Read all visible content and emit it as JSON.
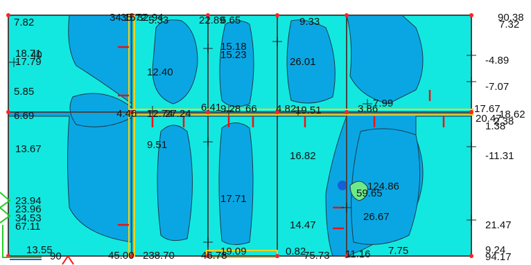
{
  "palette": {
    "band_deep": "#0aa6e4",
    "band_light": "#12e8e0",
    "band_green": "#6ee98a",
    "grid": "#444444",
    "beam": "#f0d21a",
    "marker": "#ee1111",
    "node": "#ff2222",
    "support": "#22cc22",
    "label": "#111111",
    "arrow_red": "#ff1111",
    "blob_blue": "#1560d6"
  },
  "icons": {
    "support": "support-triangle-icon",
    "node": "node-dot-icon",
    "force_arrow": "force-arrow-icon",
    "tick": "grid-tick-icon",
    "crosshair": "crosshair-icon"
  },
  "labels": [
    "7.82",
    "34.15",
    "35.72",
    "32.94",
    "5.33",
    "22.89",
    "6.65",
    "9.33",
    "90.38",
    "7.32",
    "18.71",
    "17.79",
    "40",
    "15.18",
    "15.23",
    "26.01",
    "-4.89",
    "12.40",
    "5.85",
    "-7.07",
    "6.69",
    "4.46",
    "12.74",
    "27.24",
    "6.41",
    "9.28",
    "66",
    "4.82",
    "19.51",
    "3.86",
    "7.99",
    "17.67",
    "18.62",
    "20.47",
    "2.38",
    "1.38",
    "9.51",
    "13.67",
    "16.82",
    "-11.31",
    "124.86",
    "59.65",
    "23.94",
    "23.96",
    "34.53",
    "67.11",
    "17.71",
    "26.67",
    "14.47",
    "21.47",
    "13.55",
    "90",
    "45.00",
    "238.70",
    "46.78",
    "19.09",
    "0.82",
    "75.73",
    "11.16",
    "7.75",
    "9.24",
    "94.17"
  ]
}
